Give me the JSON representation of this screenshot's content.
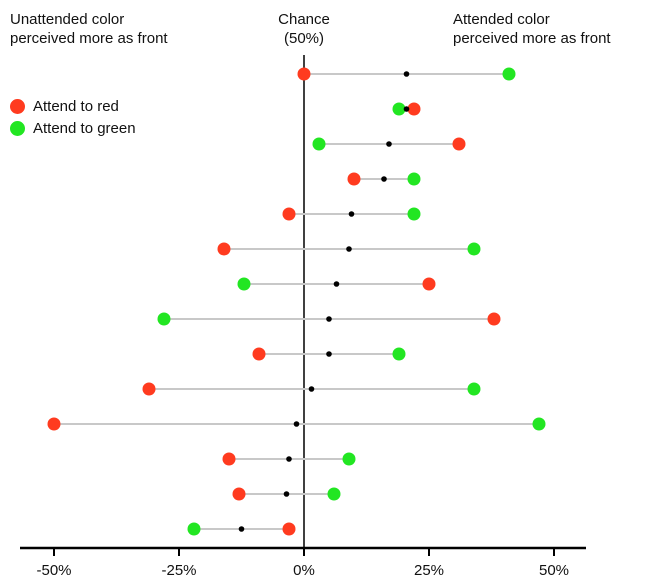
{
  "annotations": {
    "left_line1": "Unattended color",
    "left_line2": "perceived more as front",
    "center_line1": "Chance",
    "center_line2": "(50%)",
    "right_line1": "Attended color",
    "right_line2": "perceived more as front"
  },
  "colors": {
    "red": "#ff3b1f",
    "green": "#22e622",
    "mean": "#000000",
    "connector": "#c8c8c8"
  },
  "chart_data": {
    "type": "scatter",
    "title": "",
    "xlabel": "",
    "ylabel": "",
    "xlim": [
      -55,
      57
    ],
    "x_ticks": [
      -50,
      -25,
      0,
      25,
      50
    ],
    "x_tick_labels": [
      "-50%",
      "-25%",
      "0%",
      "25%",
      "50%"
    ],
    "legend": {
      "placement": "top-left",
      "entries": [
        {
          "name": "Attend to red",
          "color": "red"
        },
        {
          "name": "Attend to green",
          "color": "green"
        }
      ]
    },
    "rows": [
      {
        "red": 0,
        "green": 41,
        "mean": 20.5
      },
      {
        "red": 22,
        "green": 19,
        "mean": 20.5
      },
      {
        "red": 31,
        "green": 3,
        "mean": 17
      },
      {
        "red": 10,
        "green": 22,
        "mean": 16
      },
      {
        "red": -3,
        "green": 22,
        "mean": 9.5
      },
      {
        "red": -16,
        "green": 34,
        "mean": 9
      },
      {
        "red": 25,
        "green": -12,
        "mean": 6.5
      },
      {
        "red": 38,
        "green": -28,
        "mean": 5
      },
      {
        "red": -9,
        "green": 19,
        "mean": 5
      },
      {
        "red": -31,
        "green": 34,
        "mean": 1.5
      },
      {
        "red": -50,
        "green": 47,
        "mean": -1.5
      },
      {
        "red": -15,
        "green": 9,
        "mean": -3
      },
      {
        "red": -13,
        "green": 6,
        "mean": -3.5
      },
      {
        "red": -3,
        "green": -22,
        "mean": -12.5
      }
    ]
  }
}
